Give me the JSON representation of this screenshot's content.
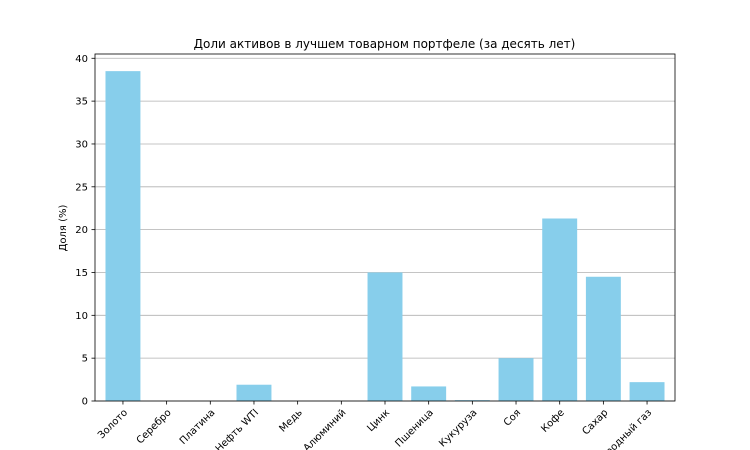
{
  "chart_data": {
    "type": "bar",
    "title": "Доли активов в лучшем товарном портфеле (за десять лет)",
    "xlabel": "",
    "ylabel": "Доля (%)",
    "categories": [
      "Золото",
      "Серебро",
      "Платина",
      "Нефть WTI",
      "Медь",
      "Алюминий",
      "Цинк",
      "Пшеница",
      "Кукуруза",
      "Соя",
      "Кофе",
      "Сахар",
      "Природный газ"
    ],
    "values": [
      38.5,
      0,
      0,
      1.9,
      0,
      0,
      15.0,
      1.7,
      0.1,
      5.0,
      21.3,
      14.5,
      2.2
    ],
    "ylim": [
      0,
      40.5
    ],
    "yticks": [
      0,
      5,
      10,
      15,
      20,
      25,
      30,
      35,
      40
    ],
    "grid": "y",
    "bar_color": "#87ceeb",
    "grid_color": "#b0b0b0"
  }
}
